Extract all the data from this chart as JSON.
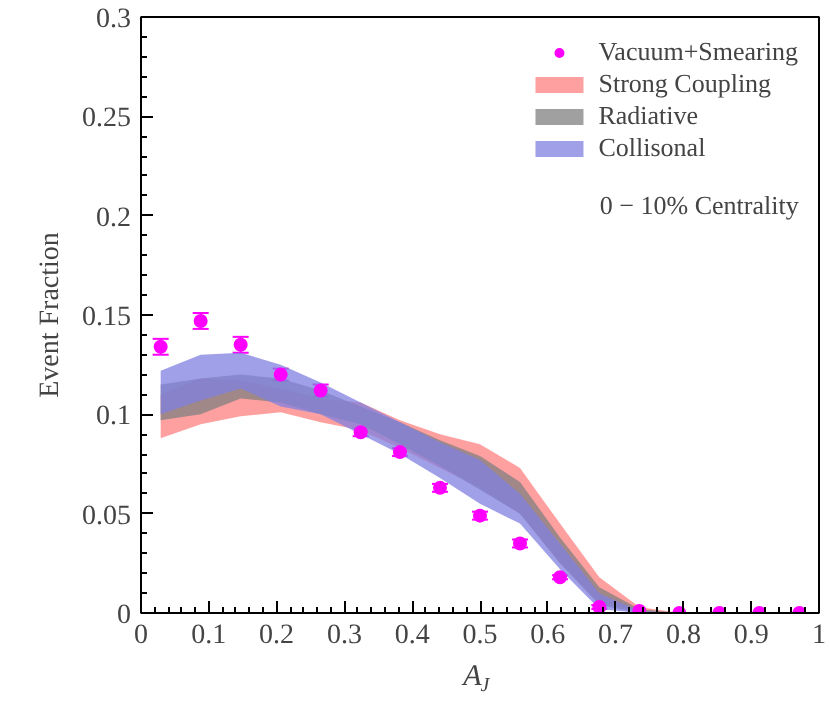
{
  "chart_data": {
    "type": "area",
    "xlabel": "A$_{J}$",
    "ylabel": "Event Fraction",
    "annotations": [
      "0 − 10% Centrality"
    ],
    "xlim": [
      0,
      1
    ],
    "ylim": [
      0,
      0.3
    ],
    "xticks": [
      0,
      0.1,
      0.2,
      0.3,
      0.4,
      0.5,
      0.6,
      0.7,
      0.8,
      0.9,
      1
    ],
    "yticks": [
      0,
      0.05,
      0.1,
      0.15,
      0.2,
      0.25,
      0.3
    ],
    "grid": false,
    "legend": "top right",
    "series": [
      {
        "name": "Strong Coupling",
        "color": "#ff8080",
        "x": [
          0.029,
          0.088,
          0.147,
          0.206,
          0.265,
          0.324,
          0.382,
          0.441,
          0.5,
          0.559,
          0.618,
          0.676,
          0.735,
          0.794
        ],
        "values": [
          null,
          null,
          null,
          null,
          null,
          null,
          null,
          null,
          null,
          null,
          null,
          null,
          null,
          null
        ],
        "lower": [
          0.088,
          0.095,
          0.099,
          0.101,
          0.096,
          0.092,
          0.083,
          0.073,
          0.063,
          0.05,
          0.025,
          0.005,
          0.001,
          0
        ],
        "upper": [
          0.11,
          0.118,
          0.117,
          0.113,
          0.108,
          0.106,
          0.097,
          0.09,
          0.085,
          0.073,
          0.045,
          0.018,
          0.003,
          0
        ]
      },
      {
        "name": "Radiative",
        "color": "#808080",
        "x": [
          0.029,
          0.088,
          0.147,
          0.206,
          0.265,
          0.324,
          0.382,
          0.441,
          0.5,
          0.559,
          0.618,
          0.676,
          0.735,
          0.794
        ],
        "values": [
          null,
          null,
          null,
          null,
          null,
          null,
          null,
          null,
          null,
          null,
          null,
          null,
          null,
          null
        ],
        "lower": [
          0.097,
          0.1,
          0.108,
          0.106,
          0.1,
          0.095,
          0.085,
          0.074,
          0.062,
          0.05,
          0.025,
          0.004,
          0,
          0
        ],
        "upper": [
          0.115,
          0.118,
          0.12,
          0.118,
          0.112,
          0.104,
          0.096,
          0.087,
          0.079,
          0.066,
          0.038,
          0.013,
          0.002,
          0
        ]
      },
      {
        "name": "Collisonal",
        "color": "#8080e0",
        "x": [
          0.029,
          0.088,
          0.147,
          0.206,
          0.265,
          0.324,
          0.382,
          0.441,
          0.5,
          0.559,
          0.618,
          0.676,
          0.735,
          0.794
        ],
        "values": [
          null,
          null,
          null,
          null,
          null,
          null,
          null,
          null,
          null,
          null,
          null,
          null,
          null,
          null
        ],
        "lower": [
          0.1,
          0.107,
          0.113,
          0.104,
          0.1,
          0.09,
          0.08,
          0.068,
          0.055,
          0.045,
          0.022,
          0.002,
          0,
          0
        ],
        "upper": [
          0.122,
          0.13,
          0.131,
          0.125,
          0.116,
          0.106,
          0.096,
          0.086,
          0.077,
          0.06,
          0.035,
          0.01,
          0.001,
          0
        ]
      },
      {
        "name": "Vacuum+Smearing",
        "type": "scatter",
        "color": "#ff00ff",
        "marker": "circle",
        "x": [
          0.029,
          0.088,
          0.147,
          0.206,
          0.265,
          0.324,
          0.382,
          0.441,
          0.5,
          0.559,
          0.618,
          0.676,
          0.735,
          0.794,
          0.853,
          0.912,
          0.971
        ],
        "values": [
          0.134,
          0.147,
          0.135,
          0.12,
          0.112,
          0.091,
          0.081,
          0.063,
          0.049,
          0.035,
          0.018,
          0.003,
          0.001,
          0,
          0,
          0,
          0
        ],
        "errors": [
          0.004,
          0.004,
          0.004,
          0.003,
          0.003,
          0.002,
          0.002,
          0.002,
          0.002,
          0.002,
          0.001,
          0.001,
          null,
          null,
          null,
          null,
          null
        ]
      }
    ]
  }
}
